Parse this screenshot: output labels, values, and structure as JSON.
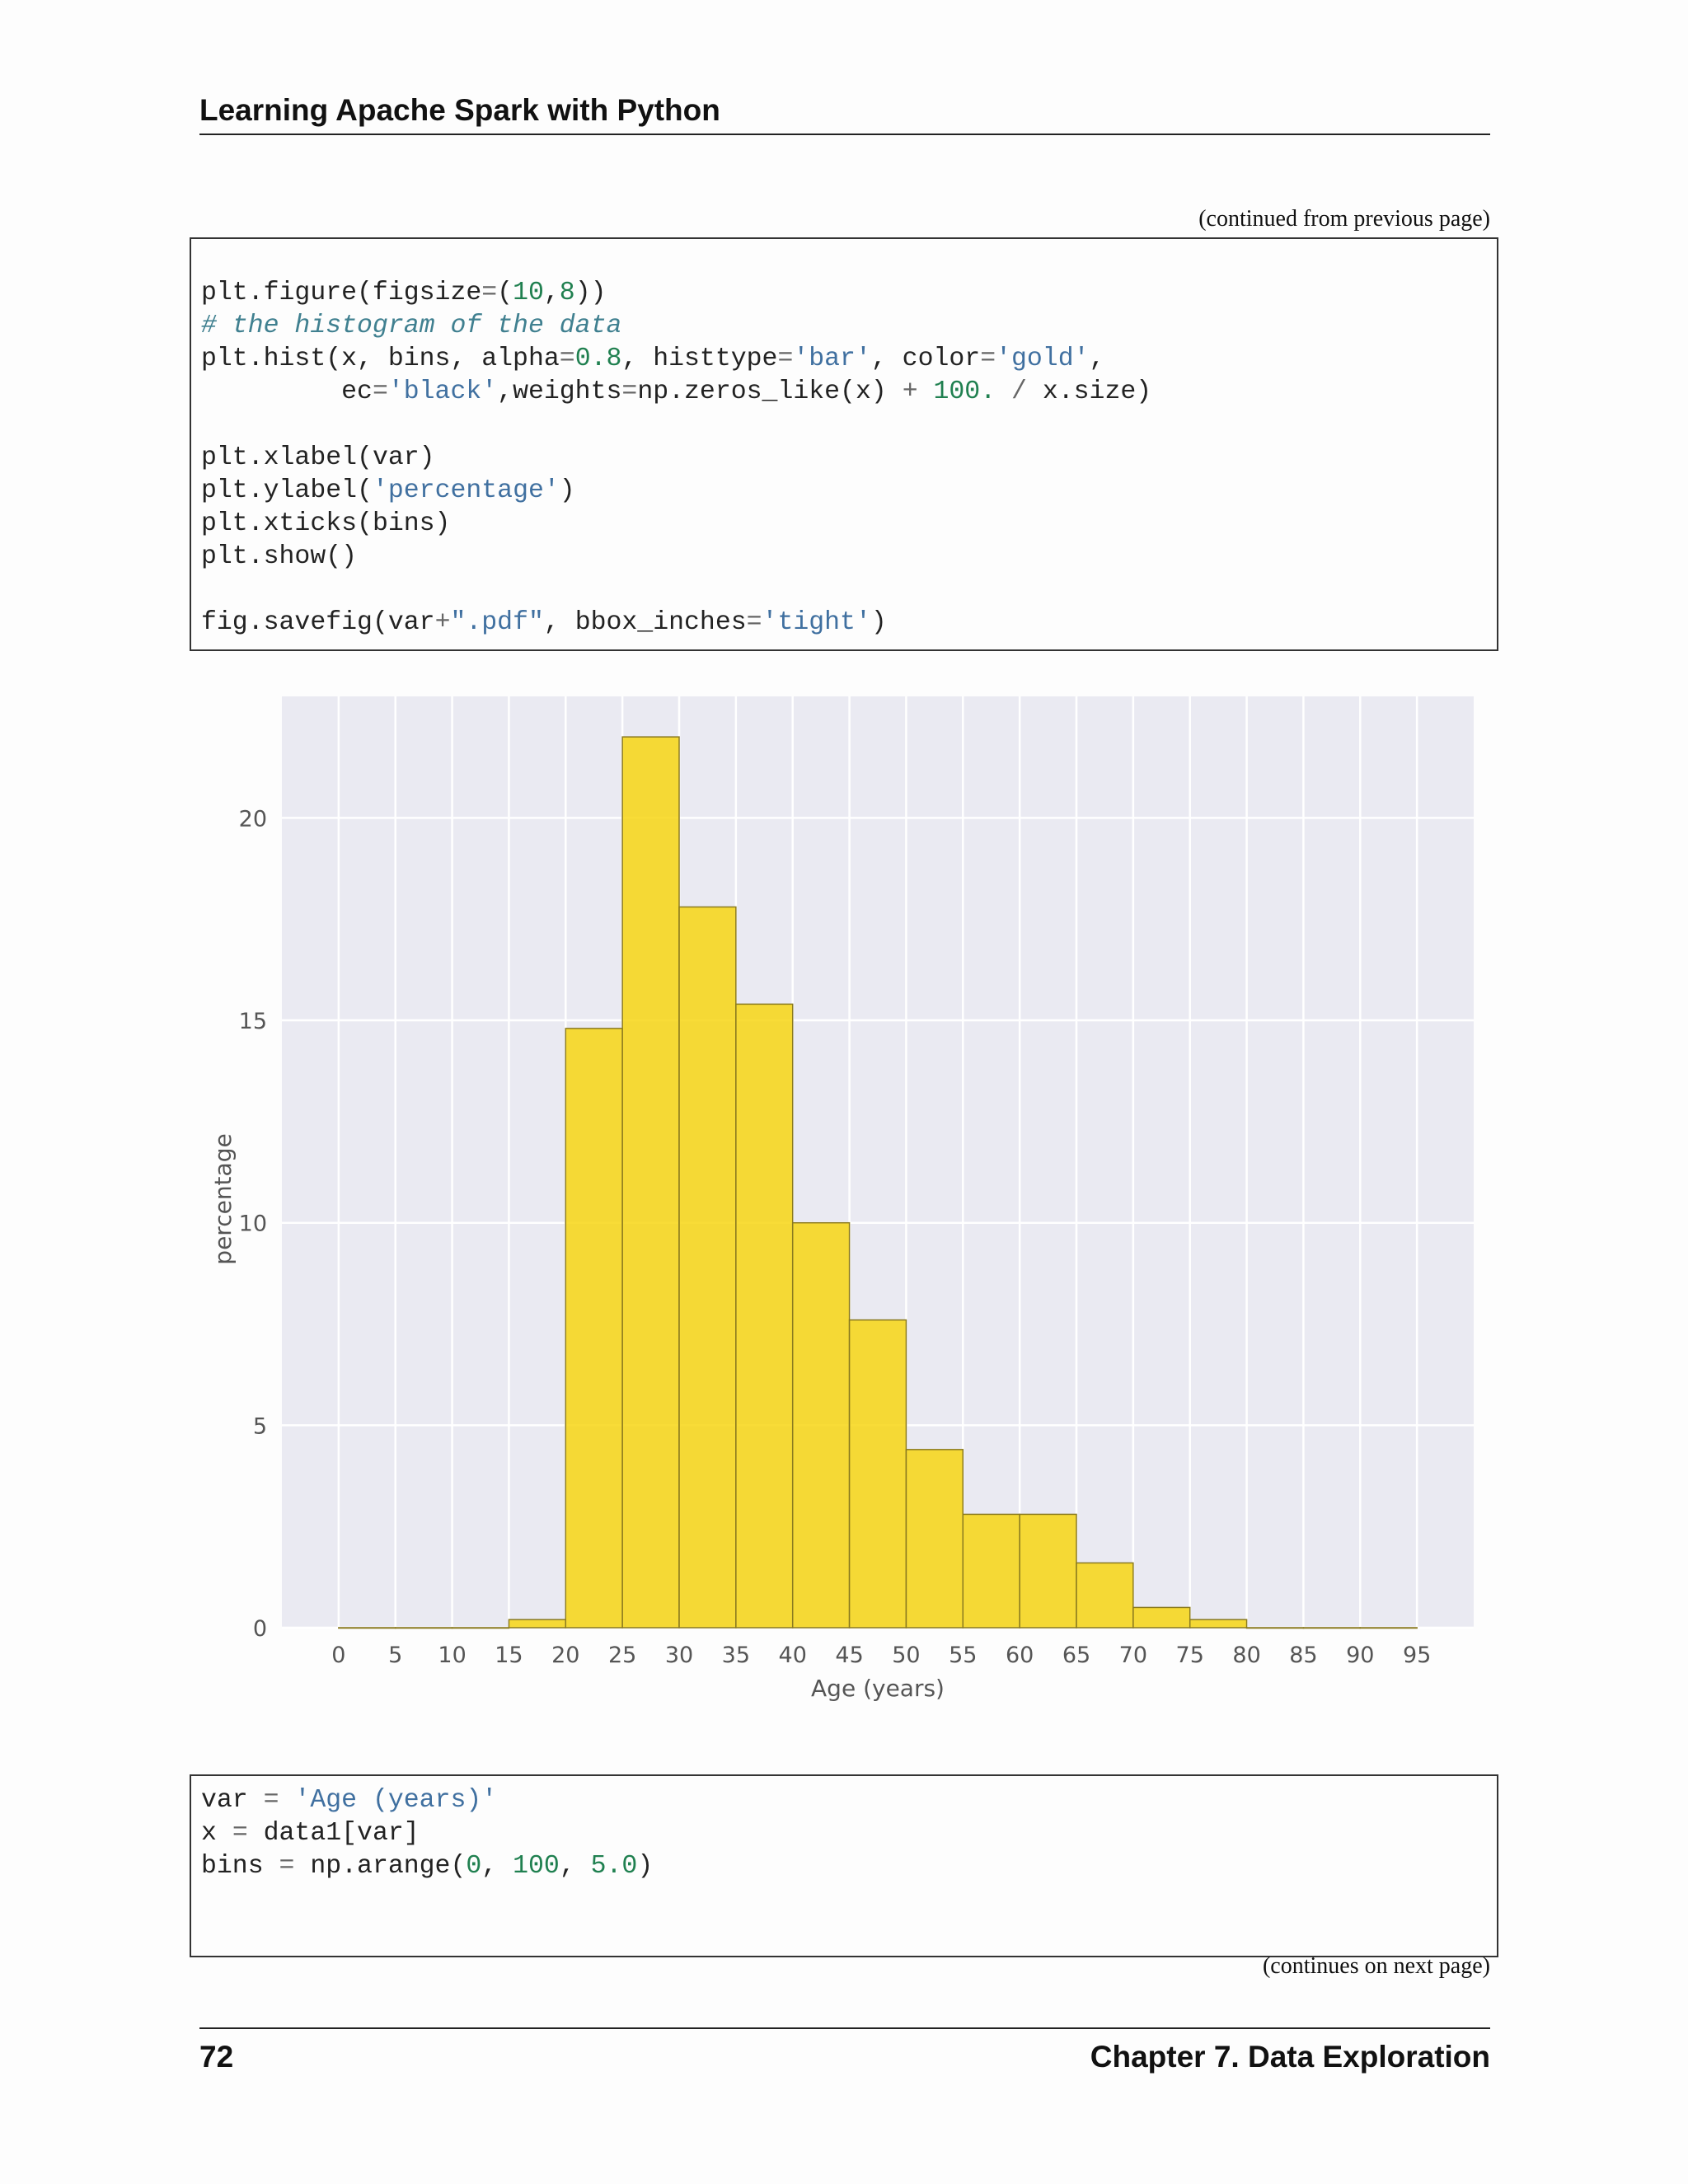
{
  "header": {
    "title": "Learning Apache Spark with Python"
  },
  "continued_from": "(continued from previous page)",
  "code_block_1": {
    "line1": [
      "plt.figure(figsize",
      "=",
      "(",
      "10",
      ",",
      "8",
      "))"
    ],
    "line2": "# the histogram of the data",
    "line3": [
      "plt.hist(x, bins, alpha",
      "=",
      "0.8",
      ", histtype",
      "=",
      "'bar'",
      ", color",
      "=",
      "'gold'",
      ","
    ],
    "line4": [
      "         ec",
      "=",
      "'black'",
      ",weights",
      "=",
      "np",
      ".",
      "zeros_like(x) ",
      "+",
      " ",
      "100.",
      " ",
      "/",
      " x",
      ".",
      "size)"
    ],
    "line5": [
      "plt",
      ".",
      "xlabel(var)"
    ],
    "line6": [
      "plt",
      ".",
      "ylabel(",
      "'percentage'",
      ")"
    ],
    "line7": [
      "plt",
      ".",
      "xticks(bins)"
    ],
    "line8": [
      "plt",
      ".",
      "show()"
    ],
    "line9": [
      "fig",
      ".",
      "savefig(var",
      "+",
      "\".pdf\"",
      ", bbox_inches",
      "=",
      "'tight'",
      ")"
    ]
  },
  "chart_data": {
    "type": "bar",
    "title": "",
    "xlabel": "Age (years)",
    "ylabel": "percentage",
    "bin_edges": [
      0,
      5,
      10,
      15,
      20,
      25,
      30,
      35,
      40,
      45,
      50,
      55,
      60,
      65,
      70,
      75,
      80,
      85,
      90,
      95
    ],
    "values": [
      0,
      0,
      0,
      0.2,
      14.8,
      22.0,
      17.8,
      15.4,
      10.0,
      7.6,
      4.4,
      2.8,
      2.8,
      1.6,
      0.5,
      0.2,
      0,
      0,
      0
    ],
    "xticks": [
      "0",
      "5",
      "10",
      "15",
      "20",
      "25",
      "30",
      "35",
      "40",
      "45",
      "50",
      "55",
      "60",
      "65",
      "70",
      "75",
      "80",
      "85",
      "90",
      "95"
    ],
    "yticks": [
      "0",
      "5",
      "10",
      "15",
      "20"
    ],
    "ylim": [
      0,
      23
    ],
    "xlim": [
      -5,
      100
    ],
    "grid": true,
    "bar_color": "#f7d614",
    "edge_color": "#8a7a20",
    "plot_background": "#eaeaf2"
  },
  "code_block_2": {
    "line1": [
      "var ",
      "=",
      " ",
      "'Age (years)'"
    ],
    "line2": [
      "x ",
      "=",
      " data1[var]"
    ],
    "line3": [
      "bins ",
      "=",
      " np",
      ".",
      "arange(",
      "0",
      ", ",
      "100",
      ", ",
      "5.0",
      ")"
    ]
  },
  "continues_on": "(continues on next page)",
  "footer": {
    "page_number": "72",
    "chapter": "Chapter 7.  Data Exploration"
  }
}
